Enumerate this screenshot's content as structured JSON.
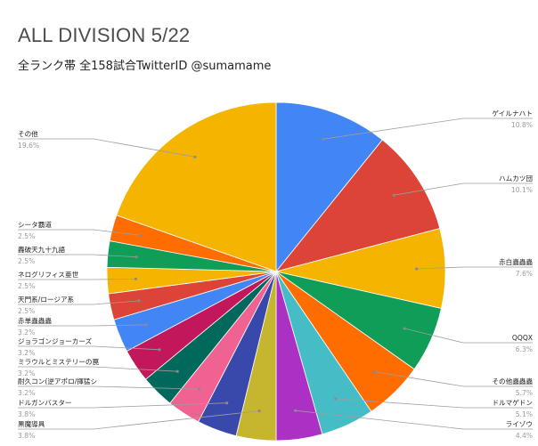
{
  "title": "ALL DIVISION 5/22",
  "subtitle": "全ランク帯 全158試合TwitterID @sumamame",
  "chart_data": {
    "type": "pie",
    "title": "ALL DIVISION 5/22",
    "subtitle": "全ランク帯 全158試合TwitterID @sumamame",
    "slices": [
      {
        "label": "ゲイルナハト",
        "value": 10.8,
        "pct_text": "10.8%",
        "color": "#4285f4",
        "side": "right"
      },
      {
        "label": "ハムカツ団",
        "value": 10.1,
        "pct_text": "10.1%",
        "color": "#db4437",
        "side": "right"
      },
      {
        "label": "赤白蟲蟲蟲",
        "value": 7.6,
        "pct_text": "7.6%",
        "color": "#f4b400",
        "side": "right"
      },
      {
        "label": "QQQX",
        "value": 6.3,
        "pct_text": "6.3%",
        "color": "#0f9d58",
        "side": "right"
      },
      {
        "label": "その他蟲蟲蟲",
        "value": 5.7,
        "pct_text": "5.7%",
        "color": "#ff6d01",
        "side": "right"
      },
      {
        "label": "ドルマゲドン",
        "value": 5.1,
        "pct_text": "5.1%",
        "color": "#46bdc6",
        "side": "right"
      },
      {
        "label": "ライゾウ",
        "value": 4.4,
        "pct_text": "4.4%",
        "color": "#ab30c4",
        "side": "right"
      },
      {
        "label": "黒魔導具",
        "value": 3.8,
        "pct_text": "3.8%",
        "color": "#c6b52f",
        "side": "left"
      },
      {
        "label": "ドルガンバスター",
        "value": 3.8,
        "pct_text": "3.8%",
        "color": "#3949ab",
        "side": "left"
      },
      {
        "label": "耐久コン(逆アポロ/揮猛シ",
        "value": 3.2,
        "pct_text": "3.2%",
        "color": "#f06292",
        "side": "left"
      },
      {
        "label": "ミラウルとミステリーの罠",
        "value": 3.2,
        "pct_text": "3.2%",
        "color": "#00695c",
        "side": "left"
      },
      {
        "label": "ジョラゴンジョーカーズ",
        "value": 3.2,
        "pct_text": "3.2%",
        "color": "#c2185b",
        "side": "left"
      },
      {
        "label": "赤単蟲蟲蟲",
        "value": 3.2,
        "pct_text": "3.2%",
        "color": "#4285f4",
        "side": "left"
      },
      {
        "label": "天門系/ロージア系",
        "value": 2.5,
        "pct_text": "2.5%",
        "color": "#db4437",
        "side": "left"
      },
      {
        "label": "ネログリフィス亜世",
        "value": 2.5,
        "pct_text": "2.5%",
        "color": "#f4b400",
        "side": "left"
      },
      {
        "label": "轟破天九十九語",
        "value": 2.5,
        "pct_text": "2.5%",
        "color": "#0f9d58",
        "side": "left"
      },
      {
        "label": "シータ覇道",
        "value": 2.5,
        "pct_text": "2.5%",
        "color": "#ff6d01",
        "side": "left"
      },
      {
        "label": "その他",
        "value": 19.6,
        "pct_text": "19.6%",
        "color": "#f4b400",
        "side": "left"
      }
    ]
  }
}
